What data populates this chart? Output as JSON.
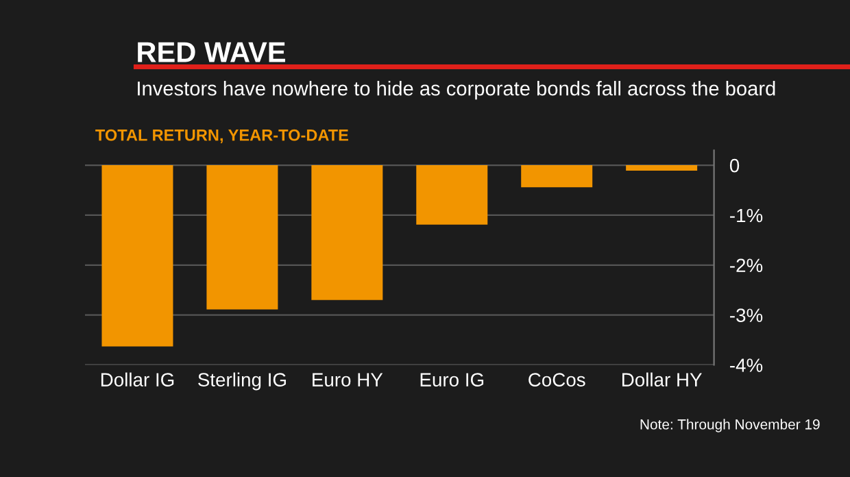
{
  "chart_data": {
    "type": "bar",
    "title": "RED WAVE",
    "subtitle": "Investors have nowhere to hide as corporate bonds fall across the board",
    "ylabel": "TOTAL RETURN, YEAR-TO-DATE",
    "categories": [
      "Dollar IG",
      "Sterling IG",
      "Euro HY",
      "Euro IG",
      "CoCos",
      "Dollar HY"
    ],
    "values": [
      -3.63,
      -2.89,
      -2.7,
      -1.19,
      -0.44,
      -0.11
    ],
    "color": "#f29500",
    "ylim": [
      -4,
      0.3
    ],
    "yticks": [
      {
        "value": -4,
        "label": "-4%"
      },
      {
        "value": -3,
        "label": "-3%"
      },
      {
        "value": -2,
        "label": "-2%"
      },
      {
        "value": -1,
        "label": "-1%"
      },
      0
    ],
    "grid": "y",
    "annotations": [
      "Note: Through November 19"
    ]
  }
}
